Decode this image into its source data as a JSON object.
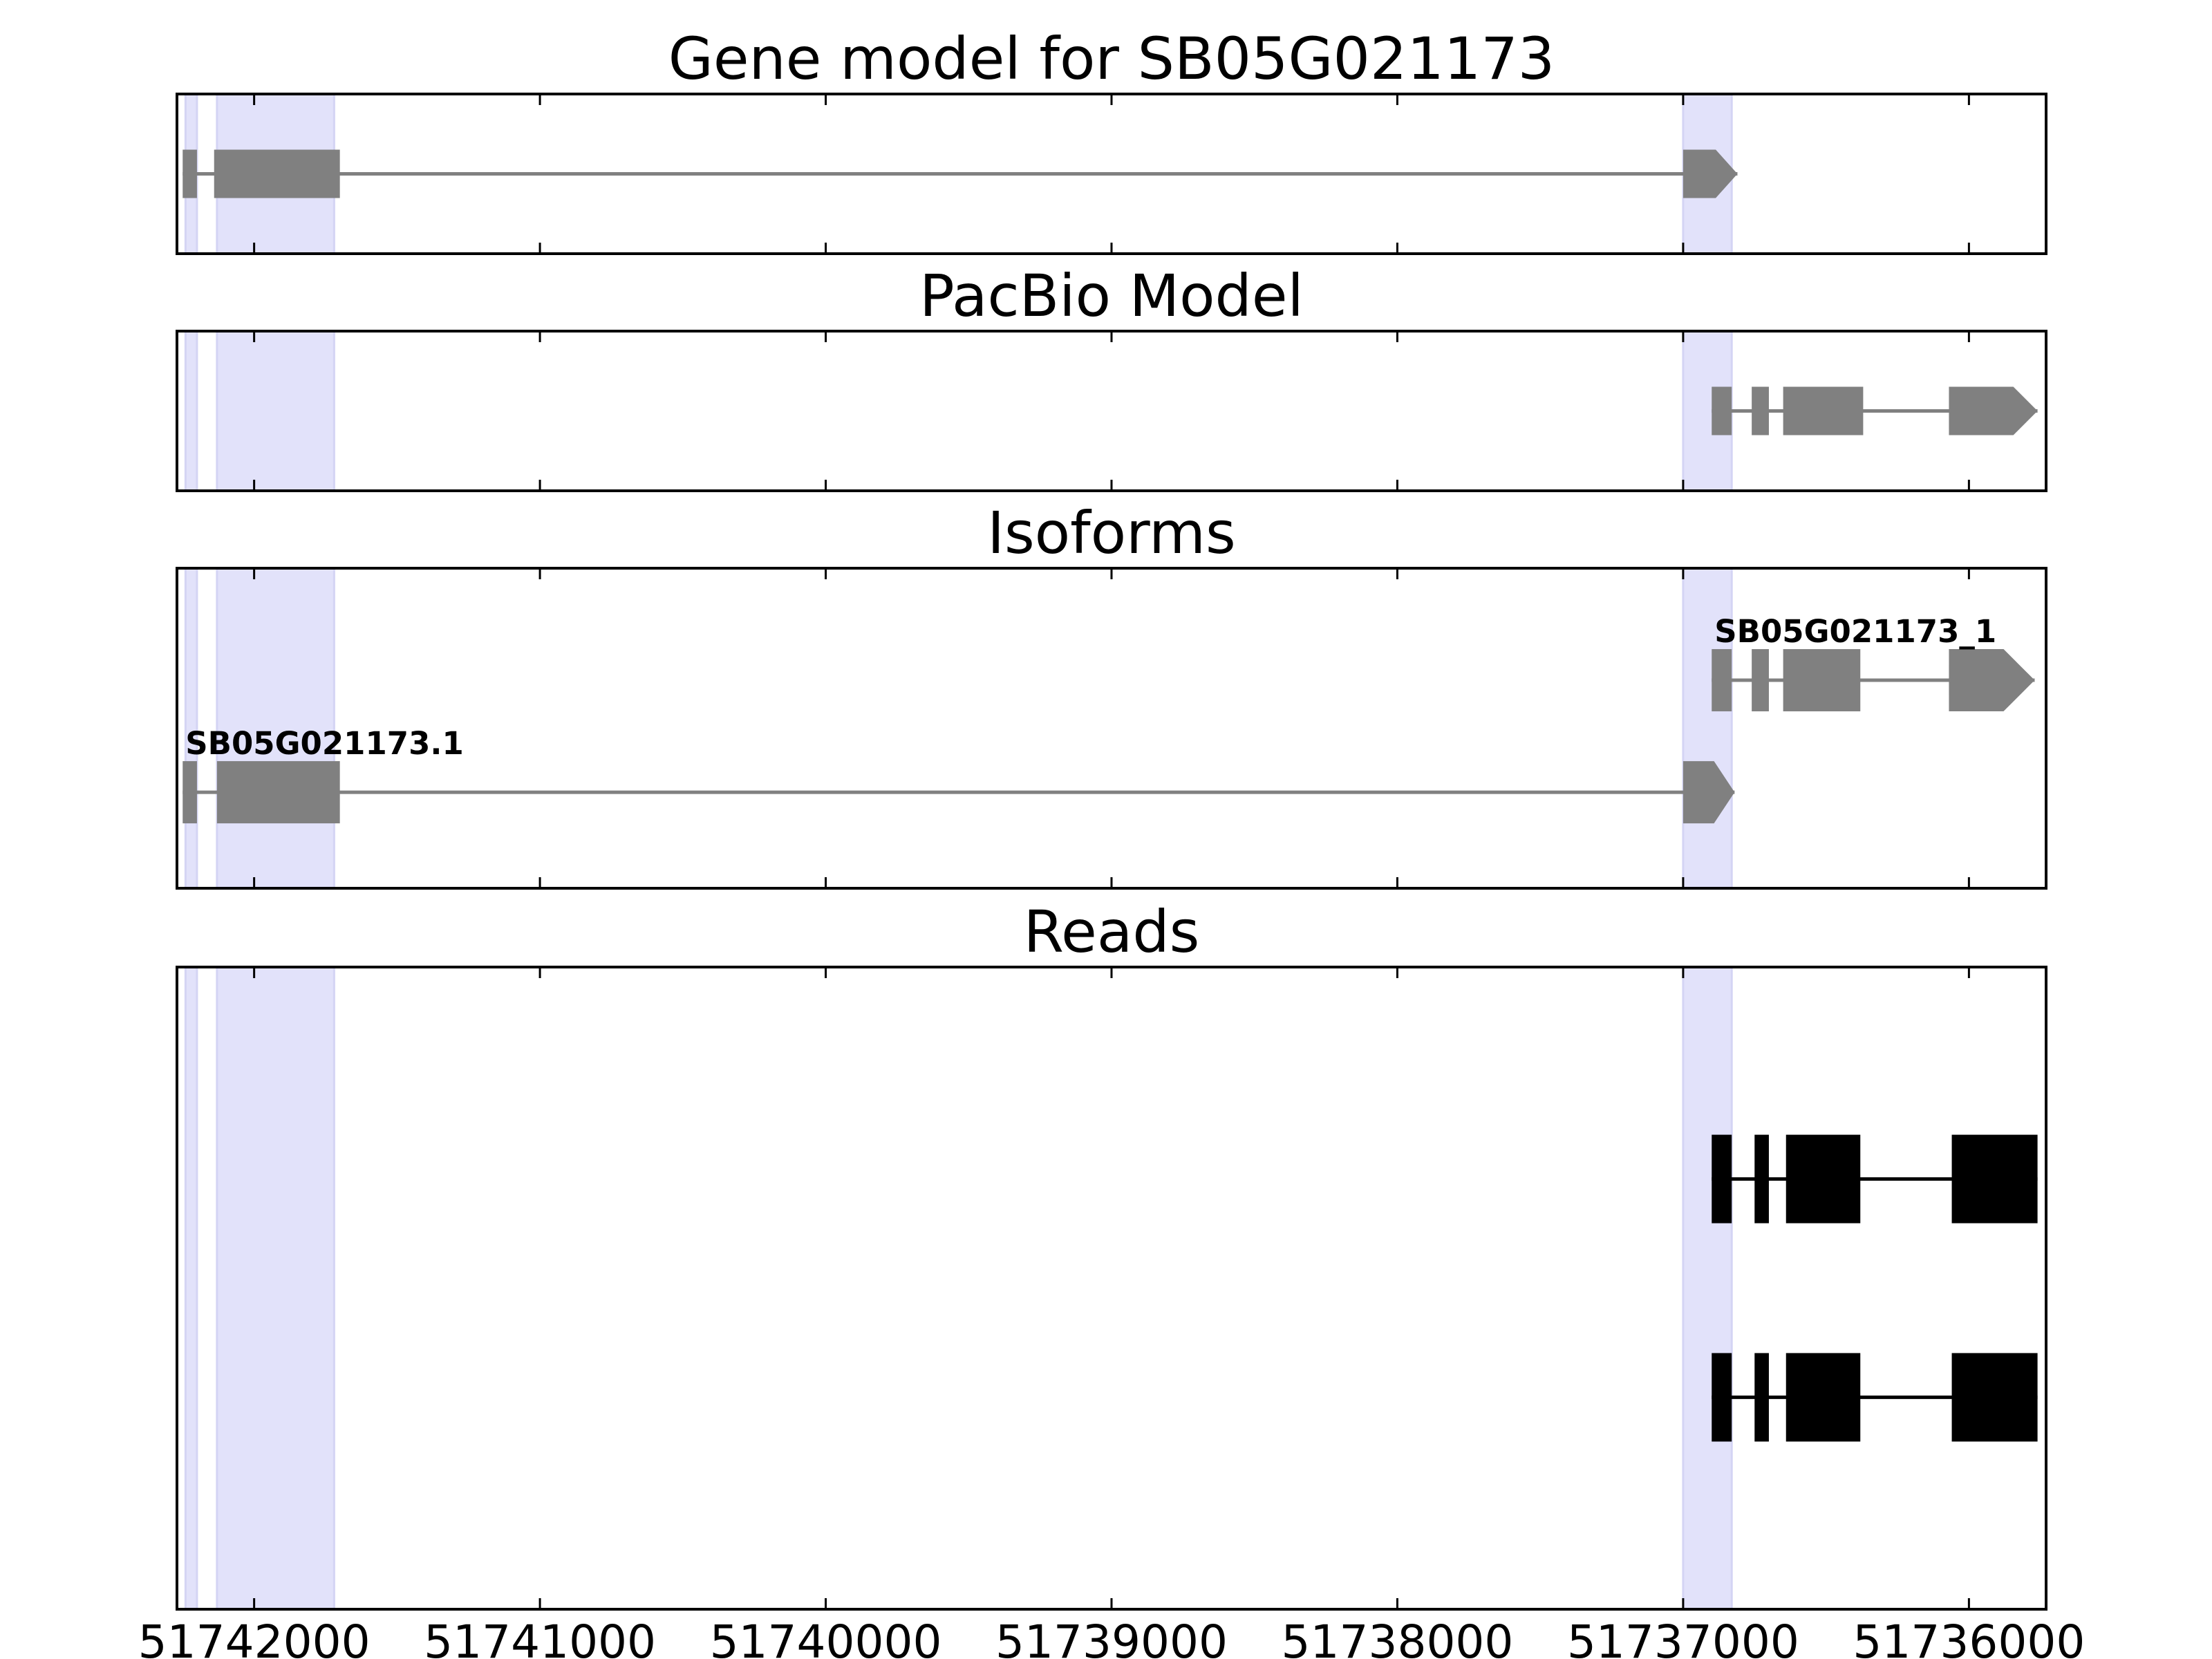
{
  "chart_data": {
    "type": "gene-track",
    "x_axis": {
      "reversed": true,
      "xlim": [
        51742270,
        51735730
      ],
      "ticks": [
        51742000,
        51741000,
        51740000,
        51739000,
        51738000,
        51737000,
        51736000
      ],
      "tick_labels": [
        "51742000",
        "51741000",
        "51740000",
        "51739000",
        "51738000",
        "51737000",
        "51736000"
      ]
    },
    "highlight_regions": [
      [
        51742240,
        51742200
      ],
      [
        51742130,
        51741720
      ],
      [
        51737000,
        51736830
      ]
    ],
    "panels": [
      {
        "title": "Gene model for SB05G021173",
        "features": [
          {
            "label": "",
            "row": 0.5,
            "exons": [
              [
                51742250,
                51742200
              ],
              [
                51742140,
                51741700
              ],
              [
                51737000,
                51736810
              ]
            ],
            "color": "#808080"
          }
        ]
      },
      {
        "title": "PacBio Model",
        "features": [
          {
            "label": "",
            "row": 0.5,
            "exons": [
              [
                51736900,
                51736830
              ],
              [
                51736760,
                51736700
              ],
              [
                51736650,
                51736370
              ],
              [
                51736070,
                51735760
              ]
            ],
            "color": "#808080"
          }
        ]
      },
      {
        "title": "Isoforms",
        "features": [
          {
            "label": "SB05G021173_1",
            "row": 0.35,
            "exons": [
              [
                51736900,
                51736830
              ],
              [
                51736760,
                51736700
              ],
              [
                51736650,
                51736380
              ],
              [
                51736070,
                51735770
              ]
            ],
            "color": "#808080"
          },
          {
            "label": "SB05G021173.1",
            "row": 0.7,
            "exons": [
              [
                51742250,
                51742200
              ],
              [
                51742130,
                51741700
              ],
              [
                51737000,
                51736820
              ]
            ],
            "color": "#808080"
          }
        ]
      },
      {
        "title": "Reads",
        "reads": [
          {
            "row": 0.33,
            "blocks": [
              [
                51736900,
                51736830
              ],
              [
                51736750,
                51736700
              ],
              [
                51736640,
                51736380
              ],
              [
                51736060,
                51735760
              ]
            ],
            "color": "#000000"
          },
          {
            "row": 0.67,
            "blocks": [
              [
                51736900,
                51736830
              ],
              [
                51736750,
                51736700
              ],
              [
                51736640,
                51736380
              ],
              [
                51736060,
                51735760
              ]
            ],
            "color": "#000000"
          }
        ]
      }
    ]
  }
}
